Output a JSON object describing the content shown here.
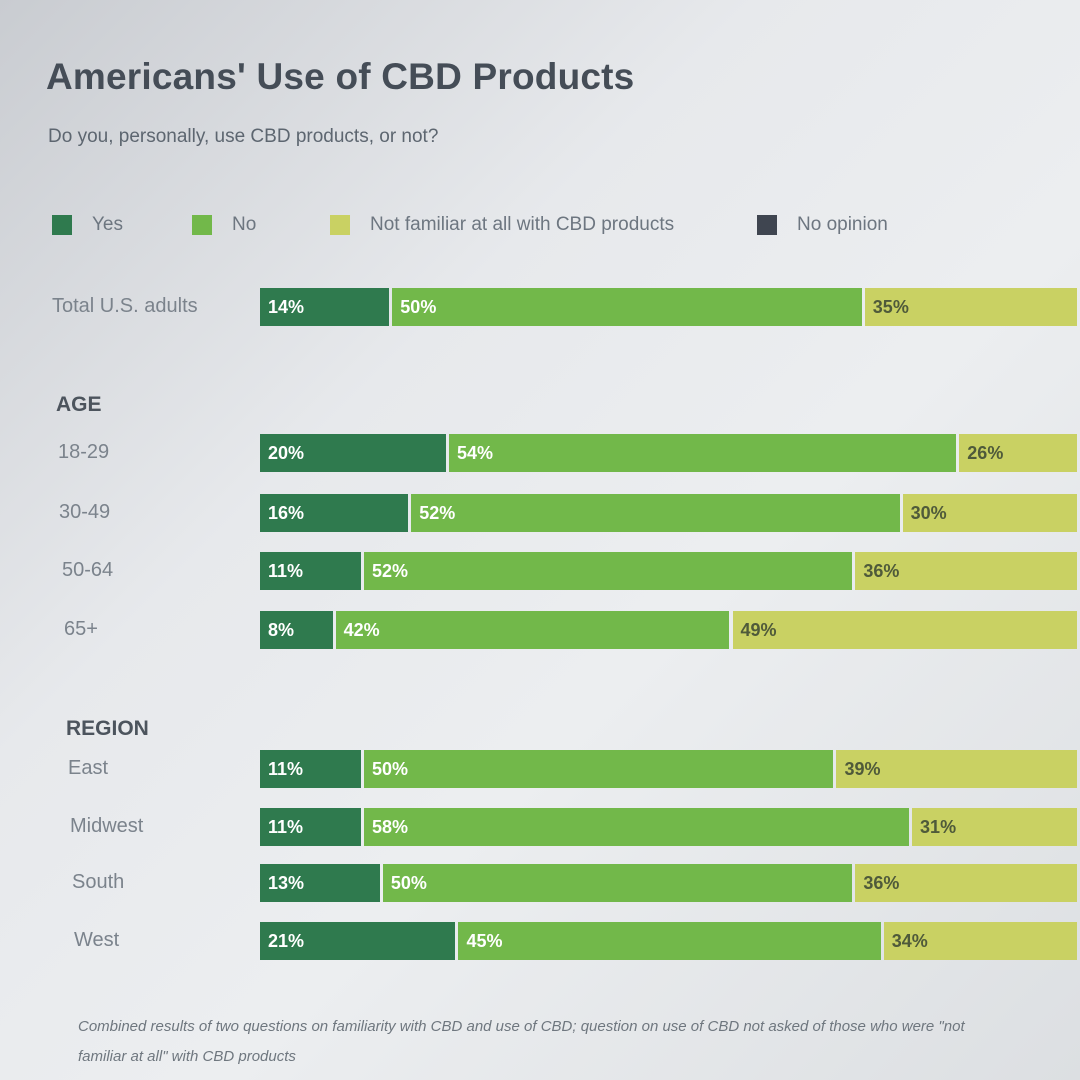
{
  "title": "Americans' Use of CBD Products",
  "subtitle": "Do you, personally, use CBD products, or not?",
  "note": "Combined results of two questions on familiarity with CBD and use of CBD; question on use of CBD not asked of those who were \"not familiar at all\" with CBD products",
  "colors": {
    "yes": "#2f7a4e",
    "no": "#72b84a",
    "not_familiar": "#c9d163",
    "no_opinion": "#3f4550"
  },
  "chart_data": {
    "type": "bar",
    "orientation": "horizontal",
    "stacked": true,
    "title": "Americans' Use of CBD Products",
    "subtitle": "Do you, personally, use CBD products, or not?",
    "legend": [
      {
        "key": "yes",
        "label": "Yes"
      },
      {
        "key": "no",
        "label": "No"
      },
      {
        "key": "not_familiar",
        "label": "Not familiar at all with CBD products"
      },
      {
        "key": "no_opinion",
        "label": "No opinion"
      }
    ],
    "legend_position": "top",
    "sections": [
      {
        "heading": "",
        "rows": [
          {
            "label": "Total U.S. adults",
            "values": [
              14,
              50,
              35
            ]
          }
        ]
      },
      {
        "heading": "AGE",
        "rows": [
          {
            "label": "18-29",
            "values": [
              20,
              54,
              26
            ]
          },
          {
            "label": "30-49",
            "values": [
              16,
              52,
              30
            ]
          },
          {
            "label": "50-64",
            "values": [
              11,
              52,
              36
            ]
          },
          {
            "label": "65+",
            "values": [
              8,
              42,
              49
            ]
          }
        ]
      },
      {
        "heading": "REGION",
        "rows": [
          {
            "label": "East",
            "values": [
              11,
              50,
              39
            ]
          },
          {
            "label": "Midwest",
            "values": [
              11,
              58,
              31
            ]
          },
          {
            "label": "South",
            "values": [
              13,
              50,
              36
            ]
          },
          {
            "label": "West",
            "values": [
              21,
              45,
              34
            ]
          }
        ]
      }
    ],
    "series_order": [
      "yes",
      "no",
      "not_familiar"
    ],
    "value_suffix": "%",
    "xlim": [
      0,
      100
    ]
  }
}
